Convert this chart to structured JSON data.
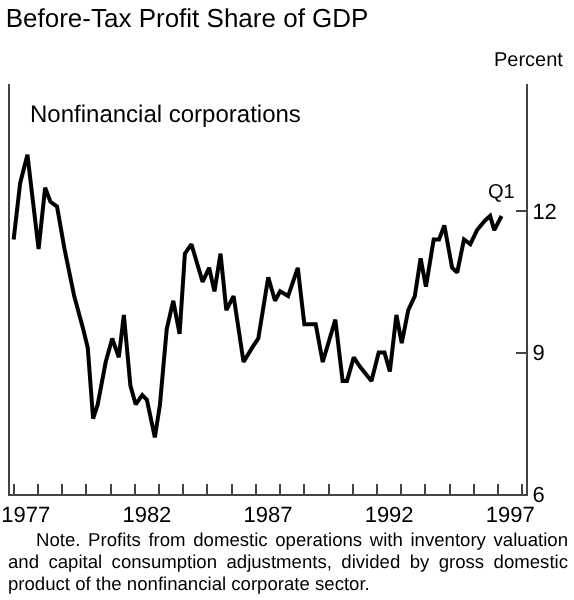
{
  "chart_data": {
    "type": "line",
    "title": "Before-Tax Profit Share of GDP",
    "subtitle": "Nonfinancial corporations",
    "ylabel": "Percent",
    "annotations": [
      {
        "text": "Q1",
        "x": 1997.14,
        "y": 11.86
      },
      "Note. Profits from domestic operations with inventory valuation and capital consumption adjustments, divided by gross domestic product of the nonfinancial corporate sector."
    ],
    "x": [
      1977.0,
      1977.27,
      1977.57,
      1978.03,
      1978.3,
      1978.52,
      1978.79,
      1979.1,
      1979.5,
      1979.87,
      1980.06,
      1980.28,
      1980.47,
      1980.8,
      1981.07,
      1981.34,
      1981.55,
      1981.82,
      1982.04,
      1982.31,
      1982.5,
      1982.83,
      1983.04,
      1983.32,
      1983.59,
      1983.85,
      1984.07,
      1984.34,
      1984.8,
      1985.07,
      1985.29,
      1985.54,
      1985.78,
      1986.08,
      1986.49,
      1986.84,
      1987.1,
      1987.51,
      1987.79,
      1988.0,
      1988.33,
      1988.73,
      1989.0,
      1989.47,
      1989.76,
      1990.28,
      1990.58,
      1990.76,
      1991.04,
      1991.3,
      1991.77,
      1992.07,
      1992.31,
      1992.53,
      1992.8,
      1993.02,
      1993.29,
      1993.56,
      1993.8,
      1994.02,
      1994.34,
      1994.56,
      1994.78,
      1995.1,
      1995.31,
      1995.59,
      1995.85,
      1996.13,
      1996.45,
      1996.67,
      1996.84,
      1997.14
    ],
    "series": [
      {
        "color": "#000000",
        "values": [
          11.4,
          12.6,
          13.2,
          11.2,
          12.5,
          12.2,
          12.1,
          11.2,
          10.2,
          9.5,
          9.1,
          7.6,
          7.9,
          8.8,
          9.3,
          8.9,
          9.8,
          8.3,
          7.9,
          8.1,
          8.0,
          7.2,
          7.9,
          9.5,
          10.1,
          9.4,
          11.1,
          11.3,
          10.5,
          10.8,
          10.3,
          11.1,
          9.9,
          10.2,
          8.8,
          9.1,
          9.3,
          10.6,
          10.1,
          10.3,
          10.2,
          10.8,
          9.6,
          9.6,
          8.8,
          9.7,
          8.4,
          8.4,
          8.9,
          8.7,
          8.4,
          9.0,
          9.0,
          8.6,
          9.8,
          9.2,
          9.9,
          10.2,
          11.0,
          10.4,
          11.4,
          11.4,
          11.7,
          10.8,
          10.7,
          11.4,
          11.3,
          11.6,
          11.8,
          11.9,
          11.6,
          11.9
        ]
      }
    ],
    "xlim": [
      1976.85,
      1998.15
    ],
    "ylim": [
      6,
      14.7
    ],
    "yticks": [
      6,
      9,
      12
    ],
    "xticks": [
      {
        "value": 1977.5,
        "label": "1977"
      },
      {
        "value": 1982.5,
        "label": "1982"
      },
      {
        "value": 1987.5,
        "label": "1987"
      },
      {
        "value": 1992.5,
        "label": "1992"
      },
      {
        "value": 1997.5,
        "label": "1997"
      },
      {
        "value": 1977,
        "label": null
      },
      {
        "value": 1978,
        "label": null
      },
      {
        "value": 1979,
        "label": null
      },
      {
        "value": 1980,
        "label": null
      },
      {
        "value": 1981,
        "label": null
      },
      {
        "value": 1982,
        "label": null
      },
      {
        "value": 1983,
        "label": null
      },
      {
        "value": 1984,
        "label": null
      },
      {
        "value": 1985,
        "label": null
      },
      {
        "value": 1986,
        "label": null
      },
      {
        "value": 1987,
        "label": null
      },
      {
        "value": 1988,
        "label": null
      },
      {
        "value": 1989,
        "label": null
      },
      {
        "value": 1990,
        "label": null
      },
      {
        "value": 1991,
        "label": null
      },
      {
        "value": 1992,
        "label": null
      },
      {
        "value": 1993,
        "label": null
      },
      {
        "value": 1994,
        "label": null
      },
      {
        "value": 1995,
        "label": null
      },
      {
        "value": 1996,
        "label": null
      },
      {
        "value": 1997,
        "label": null
      },
      {
        "value": 1998,
        "label": null
      }
    ],
    "grid": false,
    "marker": "none",
    "line_style": "solid"
  }
}
